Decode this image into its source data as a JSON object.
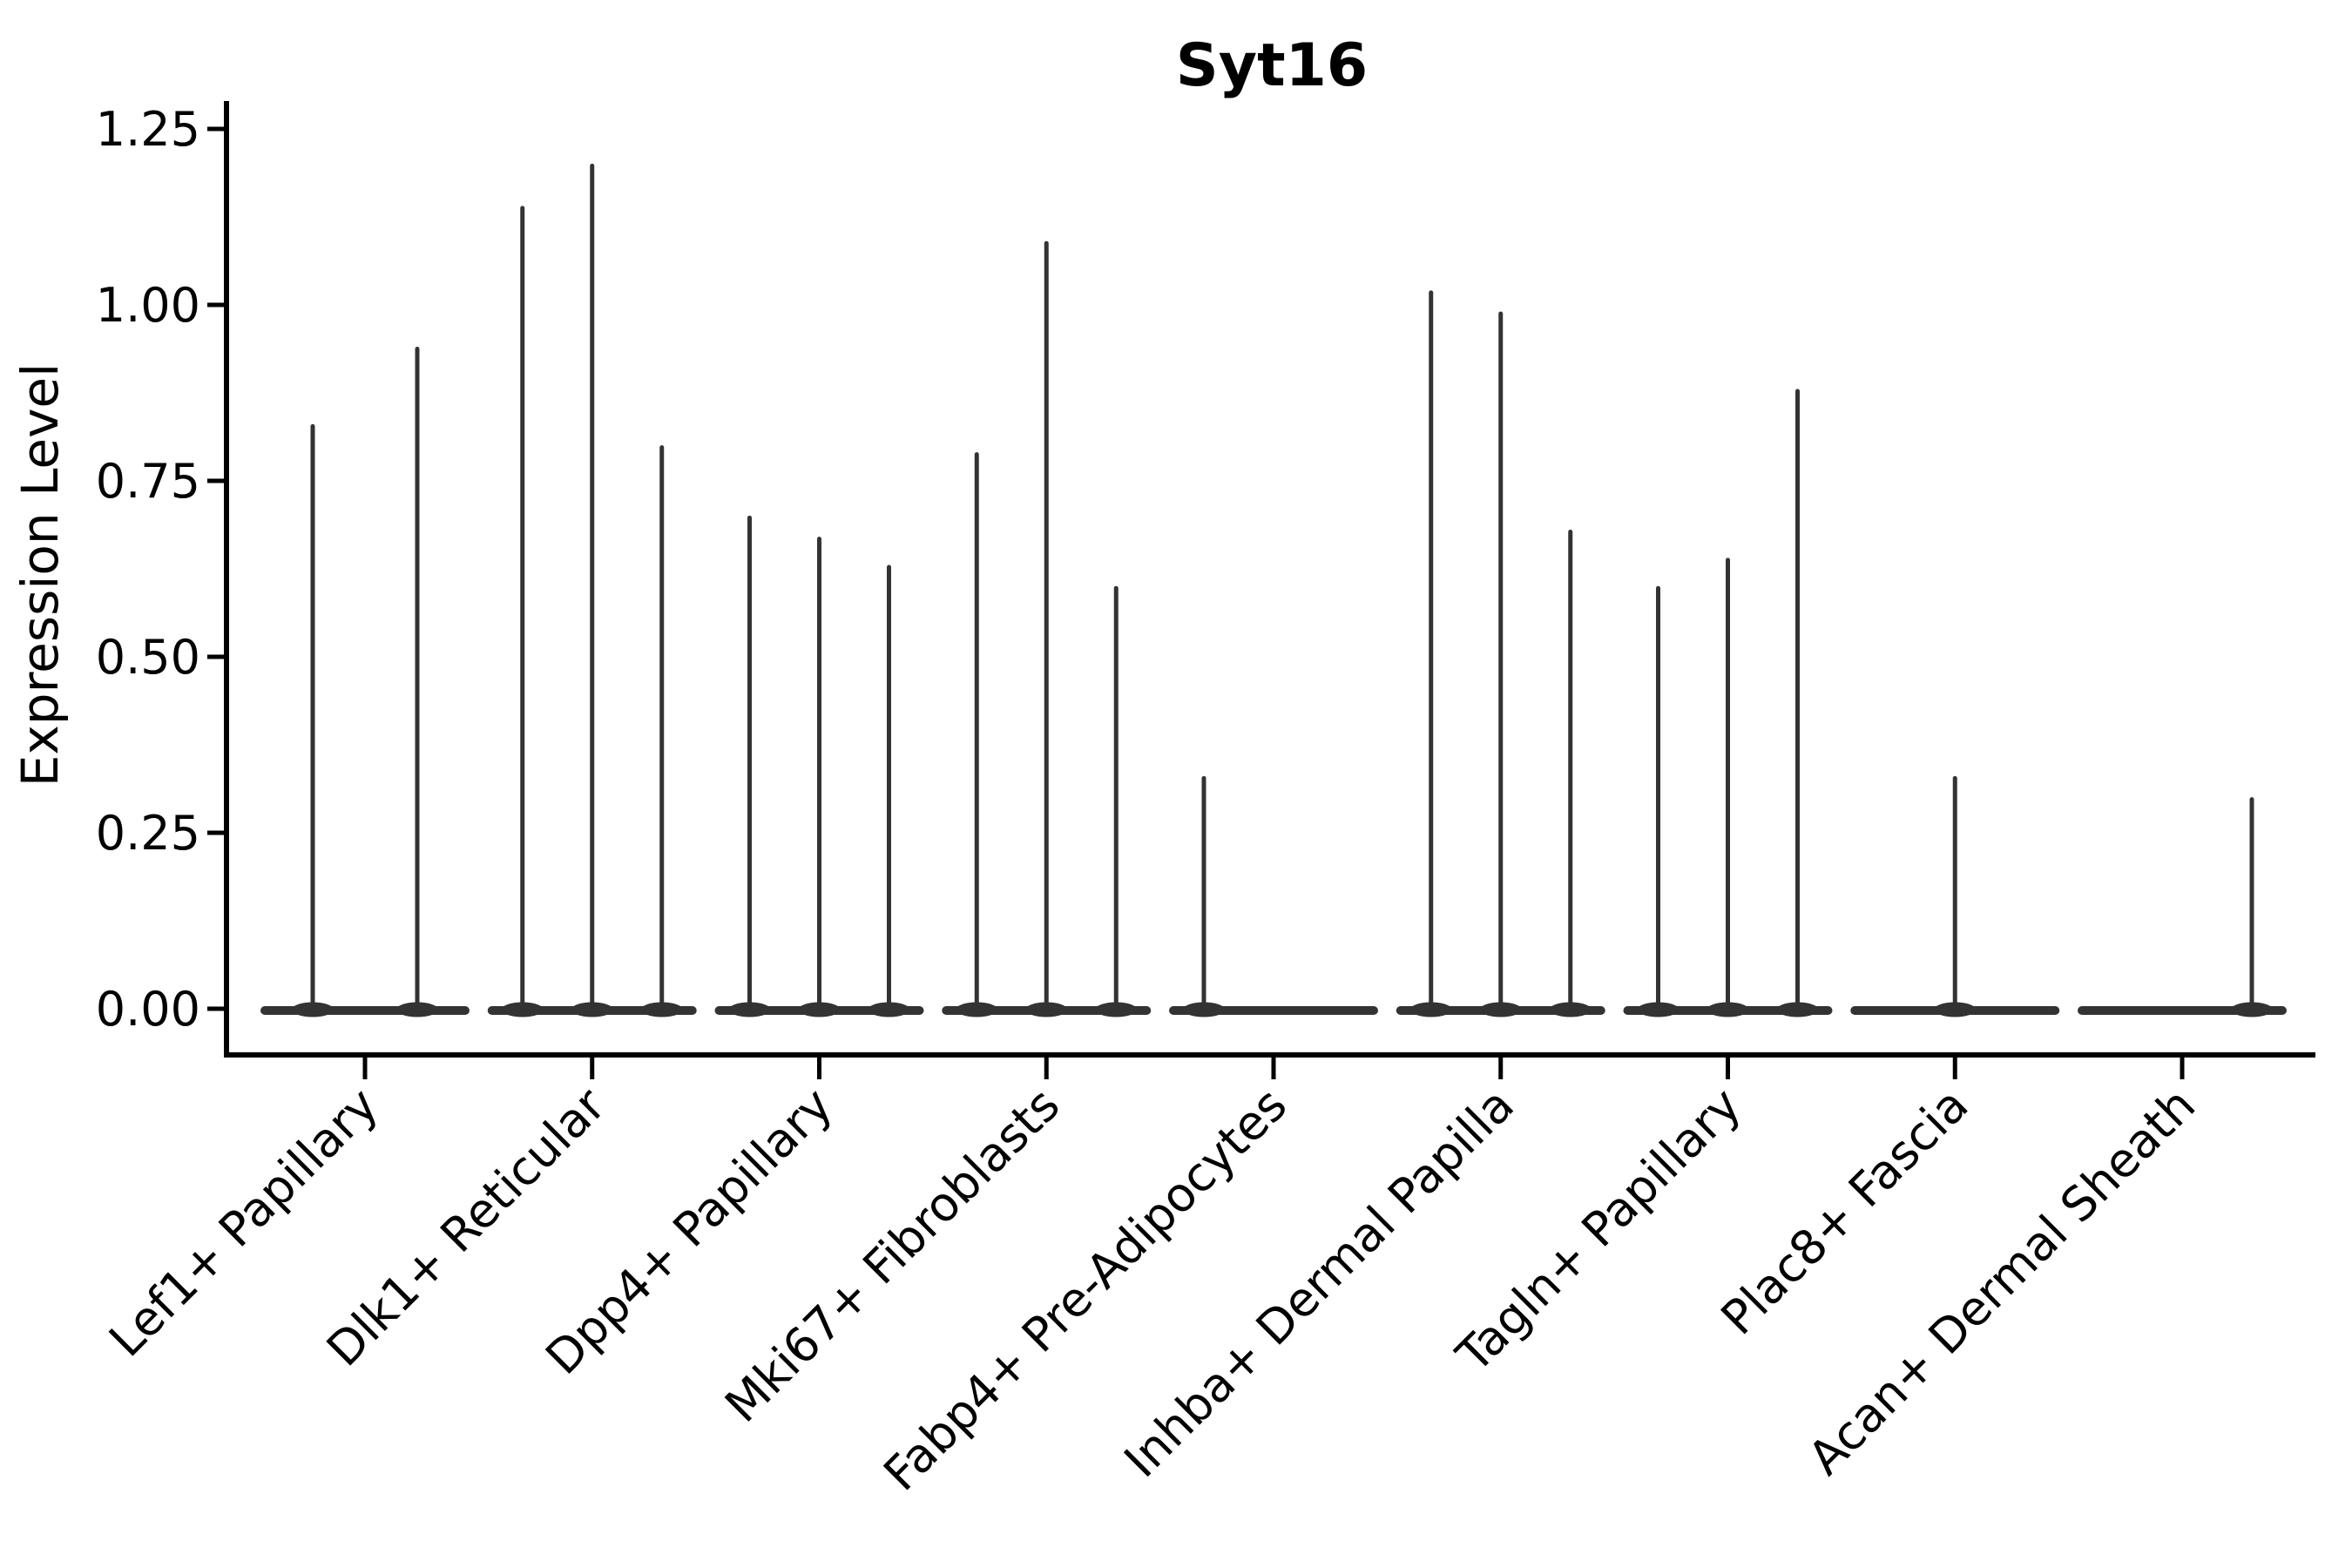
{
  "figure": {
    "title": "Syt16",
    "ylabel": "Expression Level"
  },
  "chart_data": {
    "type": "violin",
    "title": "Syt16",
    "xlabel": "",
    "ylabel": "Expression Level",
    "grid": false,
    "legend": null,
    "ylim": [
      -0.07,
      1.29
    ],
    "y_ticks": [
      0.0,
      0.25,
      0.5,
      0.75,
      1.0,
      1.25
    ],
    "y_tick_labels": [
      "0.00",
      "0.25",
      "0.50",
      "0.75",
      "1.00",
      "1.25"
    ],
    "violin_color": "#333333",
    "axis_color": "#000000",
    "categories": [
      {
        "label": "Lef1+ Papillary",
        "n_slots": 2,
        "violins": [
          {
            "slot": 0,
            "max_expression": 0.83
          },
          {
            "slot": 1,
            "max_expression": 0.94
          }
        ]
      },
      {
        "label": "Dlk1+ Reticular",
        "n_slots": 3,
        "violins": [
          {
            "slot": 0,
            "max_expression": 1.14
          },
          {
            "slot": 1,
            "max_expression": 1.2
          },
          {
            "slot": 2,
            "max_expression": 0.8
          }
        ]
      },
      {
        "label": "Dpp4+ Papillary",
        "n_slots": 3,
        "violins": [
          {
            "slot": 0,
            "max_expression": 0.7
          },
          {
            "slot": 1,
            "max_expression": 0.67
          },
          {
            "slot": 2,
            "max_expression": 0.63
          }
        ]
      },
      {
        "label": "Mki67+ Fibroblasts",
        "n_slots": 3,
        "violins": [
          {
            "slot": 0,
            "max_expression": 0.79
          },
          {
            "slot": 1,
            "max_expression": 1.09
          },
          {
            "slot": 2,
            "max_expression": 0.6
          }
        ]
      },
      {
        "label": "Fabp4+ Pre-Adipocytes",
        "n_slots": 3,
        "violins": [
          {
            "slot": 0,
            "max_expression": 0.33
          },
          {
            "slot": 1,
            "max_expression": 0.0
          },
          {
            "slot": 2,
            "max_expression": 0.0
          }
        ]
      },
      {
        "label": "Inhba+ Dermal Papilla",
        "n_slots": 3,
        "violins": [
          {
            "slot": 0,
            "max_expression": 1.02
          },
          {
            "slot": 1,
            "max_expression": 0.99
          },
          {
            "slot": 2,
            "max_expression": 0.68
          }
        ]
      },
      {
        "label": "Tagln+ Papillary",
        "n_slots": 3,
        "violins": [
          {
            "slot": 0,
            "max_expression": 0.6
          },
          {
            "slot": 1,
            "max_expression": 0.64
          },
          {
            "slot": 2,
            "max_expression": 0.88
          }
        ]
      },
      {
        "label": "Plac8+ Fascia",
        "n_slots": 3,
        "violins": [
          {
            "slot": 0,
            "max_expression": 0.0
          },
          {
            "slot": 1,
            "max_expression": 0.33
          },
          {
            "slot": 2,
            "max_expression": 0.0
          }
        ]
      },
      {
        "label": "Acan+ Dermal Sheath",
        "n_slots": 3,
        "violins": [
          {
            "slot": 0,
            "max_expression": 0.0
          },
          {
            "slot": 1,
            "max_expression": 0.0
          },
          {
            "slot": 2,
            "max_expression": 0.3
          }
        ]
      }
    ]
  }
}
